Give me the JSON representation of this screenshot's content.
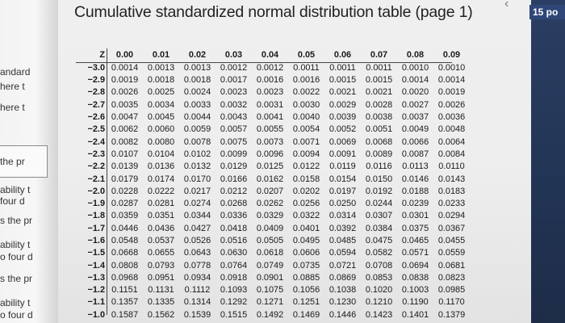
{
  "left_page": {
    "lines": [
      "andard",
      "here t",
      "here t",
      "the pr",
      "ability t",
      "four d",
      "s the pr",
      "ability t",
      "o four d",
      "s the pr",
      "ability t",
      "o four d"
    ]
  },
  "right_panel": {
    "badge": "15 po"
  },
  "title": "Cumulative standardized normal distribution table (page 1)",
  "table": {
    "headers": [
      "Z",
      "0.00",
      "0.01",
      "0.02",
      "0.03",
      "0.04",
      "0.05",
      "0.06",
      "0.07",
      "0.08",
      "0.09"
    ],
    "rows": [
      [
        "−3.0",
        "0.0014",
        "0.0013",
        "0.0013",
        "0.0012",
        "0.0012",
        "0.0011",
        "0.0011",
        "0.0011",
        "0.0010",
        "0.0010"
      ],
      [
        "−2.9",
        "0.0019",
        "0.0018",
        "0.0018",
        "0.0017",
        "0.0016",
        "0.0016",
        "0.0015",
        "0.0015",
        "0.0014",
        "0.0014"
      ],
      [
        "−2.8",
        "0.0026",
        "0.0025",
        "0.0024",
        "0.0023",
        "0.0023",
        "0.0022",
        "0.0021",
        "0.0021",
        "0.0020",
        "0.0019"
      ],
      [
        "−2.7",
        "0.0035",
        "0.0034",
        "0.0033",
        "0.0032",
        "0.0031",
        "0.0030",
        "0.0029",
        "0.0028",
        "0.0027",
        "0.0026"
      ],
      [
        "−2.6",
        "0.0047",
        "0.0045",
        "0.0044",
        "0.0043",
        "0.0041",
        "0.0040",
        "0.0039",
        "0.0038",
        "0.0037",
        "0.0036"
      ],
      [
        "−2.5",
        "0.0062",
        "0.0060",
        "0.0059",
        "0.0057",
        "0.0055",
        "0.0054",
        "0.0052",
        "0.0051",
        "0.0049",
        "0.0048"
      ],
      [
        "−2.4",
        "0.0082",
        "0.0080",
        "0.0078",
        "0.0075",
        "0.0073",
        "0.0071",
        "0.0069",
        "0.0068",
        "0.0066",
        "0.0064"
      ],
      [
        "−2.3",
        "0.0107",
        "0.0104",
        "0.0102",
        "0.0099",
        "0.0096",
        "0.0094",
        "0.0091",
        "0.0089",
        "0.0087",
        "0.0084"
      ],
      [
        "−2.2",
        "0.0139",
        "0.0136",
        "0.0132",
        "0.0129",
        "0.0125",
        "0.0122",
        "0.0119",
        "0.0116",
        "0.0113",
        "0.0110"
      ],
      [
        "−2.1",
        "0.0179",
        "0.0174",
        "0.0170",
        "0.0166",
        "0.0162",
        "0.0158",
        "0.0154",
        "0.0150",
        "0.0146",
        "0.0143"
      ],
      [
        "−2.0",
        "0.0228",
        "0.0222",
        "0.0217",
        "0.0212",
        "0.0207",
        "0.0202",
        "0.0197",
        "0.0192",
        "0.0188",
        "0.0183"
      ],
      [
        "−1.9",
        "0.0287",
        "0.0281",
        "0.0274",
        "0.0268",
        "0.0262",
        "0.0256",
        "0.0250",
        "0.0244",
        "0.0239",
        "0.0233"
      ],
      [
        "−1.8",
        "0.0359",
        "0.0351",
        "0.0344",
        "0.0336",
        "0.0329",
        "0.0322",
        "0.0314",
        "0.0307",
        "0.0301",
        "0.0294"
      ],
      [
        "−1.7",
        "0.0446",
        "0.0436",
        "0.0427",
        "0.0418",
        "0.0409",
        "0.0401",
        "0.0392",
        "0.0384",
        "0.0375",
        "0.0367"
      ],
      [
        "−1.6",
        "0.0548",
        "0.0537",
        "0.0526",
        "0.0516",
        "0.0505",
        "0.0495",
        "0.0485",
        "0.0475",
        "0.0465",
        "0.0455"
      ],
      [
        "−1.5",
        "0.0668",
        "0.0655",
        "0.0643",
        "0.0630",
        "0.0618",
        "0.0606",
        "0.0594",
        "0.0582",
        "0.0571",
        "0.0559"
      ],
      [
        "−1.4",
        "0.0808",
        "0.0793",
        "0.0778",
        "0.0764",
        "0.0749",
        "0.0735",
        "0.0721",
        "0.0708",
        "0.0694",
        "0.0681"
      ],
      [
        "−1.3",
        "0.0968",
        "0.0951",
        "0.0934",
        "0.0918",
        "0.0901",
        "0.0885",
        "0.0869",
        "0.0853",
        "0.0838",
        "0.0823"
      ],
      [
        "−1.2",
        "0.1151",
        "0.1131",
        "0.1112",
        "0.1093",
        "0.1075",
        "0.1056",
        "0.1038",
        "0.1020",
        "0.1003",
        "0.0985"
      ],
      [
        "−1.1",
        "0.1357",
        "0.1335",
        "0.1314",
        "0.1292",
        "0.1271",
        "0.1251",
        "0.1230",
        "0.1210",
        "0.1190",
        "0.1170"
      ],
      [
        "−1.0",
        "0.1587",
        "0.1562",
        "0.1539",
        "0.1515",
        "0.1492",
        "0.1469",
        "0.1446",
        "0.1423",
        "0.1401",
        "0.1379"
      ]
    ]
  },
  "icons": {
    "close": "close-icon"
  }
}
